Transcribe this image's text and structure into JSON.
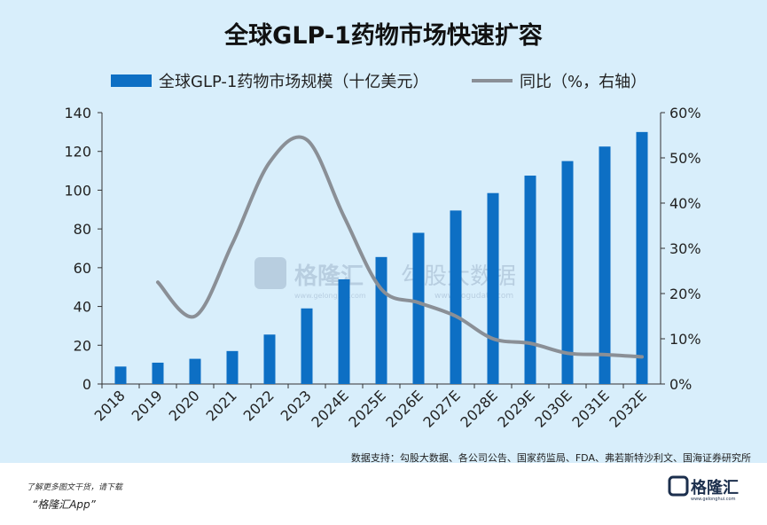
{
  "title": "全球GLP-1药物市场快速扩容",
  "legend": {
    "bar_label": "全球GLP-1药物市场规模（十亿美元）",
    "line_label": "同比（%，右轴）"
  },
  "source": "数据支持：勾股大数据、各公司公告、国家药监局、FDA、弗若斯特沙利文、国海证券研究所",
  "footer": {
    "line1": "了解更多图文干货，请下载",
    "line2": "“格隆汇App”",
    "logo_text": "格隆汇",
    "logo_sub": "www.gelonghui.com"
  },
  "watermark": {
    "brand": "格隆汇",
    "brand_url": "www.gelonghui.com",
    "data_brand": "勾股大数据",
    "data_url": "www.gogudata.com"
  },
  "colors": {
    "bar": "#0d6fc4",
    "line": "#8a8f96",
    "background": "#d8eefb"
  },
  "chart_data": {
    "type": "bar",
    "categories": [
      "2018",
      "2019",
      "2020",
      "2021",
      "2022",
      "2023",
      "2024E",
      "2025E",
      "2026E",
      "2027E",
      "2028E",
      "2029E",
      "2030E",
      "2031E",
      "2032E"
    ],
    "series": [
      {
        "name": "全球GLP-1药物市场规模（十亿美元）",
        "type": "bar",
        "axis": "left",
        "values": [
          9,
          11,
          13,
          17,
          25.5,
          39,
          54,
          65.5,
          78,
          89.5,
          98.5,
          107.5,
          115,
          122.5,
          130
        ]
      },
      {
        "name": "同比（%，右轴）",
        "type": "line",
        "axis": "right",
        "x": [
          "2019",
          "2020",
          "2021",
          "2022",
          "2023",
          "2024E",
          "2025E",
          "2026E",
          "2027E",
          "2028E",
          "2029E",
          "2030E",
          "2031E",
          "2032E"
        ],
        "values": [
          22.5,
          15,
          31,
          49,
          54,
          37,
          21,
          18,
          15,
          10,
          9,
          6.8,
          6.5,
          6
        ]
      }
    ],
    "y_left": {
      "min": 0,
      "max": 140,
      "ticks": [
        0,
        20,
        40,
        60,
        80,
        100,
        120,
        140
      ]
    },
    "y_right": {
      "min": 0,
      "max": 60,
      "ticks": [
        "0%",
        "10%",
        "20%",
        "30%",
        "40%",
        "50%",
        "60%"
      ]
    },
    "grid": false,
    "legend_position": "top"
  }
}
